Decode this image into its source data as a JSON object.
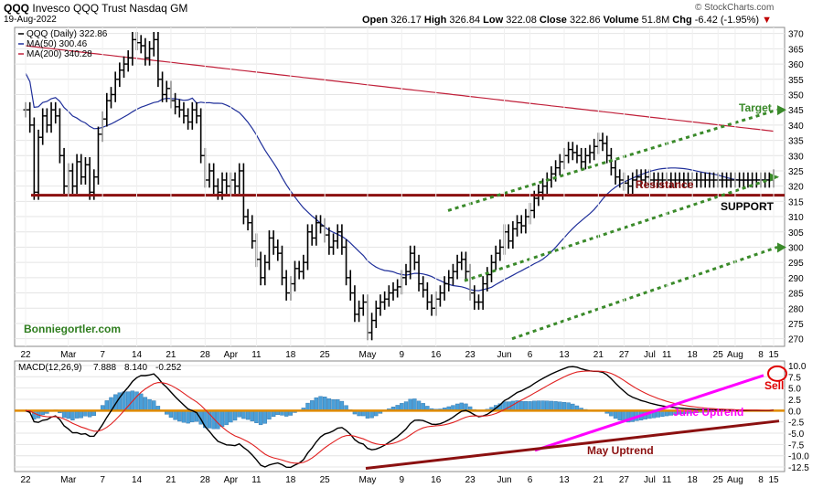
{
  "header": {
    "symbol": "QQQ",
    "name": "Invesco QQQ Trust",
    "exchange": "Nasdaq GM",
    "date": "19-Aug-2022",
    "open_label": "Open",
    "open": "326.17",
    "high_label": "High",
    "high": "326.84",
    "low_label": "Low",
    "low": "322.08",
    "close_label": "Close",
    "close": "322.86",
    "volume_label": "Volume",
    "volume": "51.8M",
    "chg_label": "Chg",
    "chg": "-6.42 (-1.95%)",
    "watermark": "© StockCharts.com"
  },
  "colors": {
    "price": "#000000",
    "ma50": "#1f2f9a",
    "ma200": "#c0203a",
    "support": "#8b1010",
    "channel": "#3a8a2a",
    "macd_line": "#000000",
    "signal": "#e02020",
    "hist": "#4a9fd8",
    "zero": "#e08a00",
    "june": "#ff00ff",
    "may": "#8b1010"
  },
  "chart_data": [
    {
      "type": "line",
      "title": "QQQ (Daily) 322.86",
      "legend": [
        {
          "label": "QQQ (Daily) 322.86",
          "color": "#000000"
        },
        {
          "label": "MA(50) 300.46",
          "color": "#1f2f9a"
        },
        {
          "label": "MA(200) 340.28",
          "color": "#c0203a"
        }
      ],
      "yticks": [
        270,
        275,
        280,
        285,
        290,
        295,
        300,
        305,
        310,
        315,
        320,
        325,
        330,
        335,
        340,
        345,
        350,
        355,
        360,
        365,
        370
      ],
      "ylim": [
        267.5,
        372
      ],
      "xticks": [
        "22",
        "Mar",
        "7",
        "14",
        "21",
        "28",
        "Apr",
        "11",
        "18",
        "25",
        "May",
        "9",
        "16",
        "23",
        "Jun",
        "6",
        "13",
        "21",
        "27",
        "Jul",
        "11",
        "18",
        "25",
        "Aug",
        "8",
        "15"
      ],
      "series": [
        {
          "name": "QQQ",
          "x": [
            0,
            1,
            2,
            3,
            4,
            5,
            6,
            7,
            8,
            9,
            10,
            11,
            12,
            13,
            14,
            15,
            16,
            17,
            18,
            19,
            20,
            21,
            22,
            23,
            24,
            25,
            26,
            27,
            28,
            29,
            30,
            31,
            32,
            33,
            34,
            35,
            36,
            37,
            38,
            39,
            40,
            41,
            42,
            43,
            44,
            45,
            46,
            47,
            48,
            49,
            50,
            51,
            52,
            53,
            54,
            55,
            56,
            57,
            58,
            59,
            60,
            61,
            62,
            63,
            64,
            65,
            66,
            67,
            68,
            69,
            70,
            71,
            72,
            73,
            74,
            75,
            76,
            77,
            78,
            79,
            80,
            81,
            82,
            83,
            84,
            85,
            86,
            87,
            88,
            89,
            90,
            91,
            92,
            93,
            94,
            95,
            96,
            97,
            98,
            99,
            100,
            101,
            102,
            103,
            104,
            105,
            106,
            107,
            108,
            109,
            110,
            111,
            112,
            113,
            114,
            115,
            116,
            117,
            118,
            119,
            120,
            121,
            122,
            123,
            124,
            125,
            126,
            127,
            128,
            129,
            130,
            131,
            132,
            133,
            134,
            135,
            136,
            137,
            138,
            139,
            140,
            141,
            142,
            143,
            144,
            145,
            146,
            147,
            148,
            149,
            150,
            151,
            152,
            153,
            154,
            155,
            156,
            157,
            158,
            159,
            160,
            161,
            162,
            163,
            164,
            165,
            166,
            167,
            168,
            169,
            170,
            171,
            172,
            173,
            174,
            175
          ],
          "close": [
            345,
            340,
            318,
            336,
            343,
            340,
            345,
            343,
            330,
            320,
            325,
            320,
            328,
            323,
            327,
            318,
            323,
            337,
            342,
            348,
            350,
            355,
            358,
            360,
            362,
            368,
            367,
            366,
            362,
            365,
            368,
            355,
            350,
            352,
            348,
            346,
            345,
            343,
            341,
            345,
            343,
            330,
            322,
            325,
            320,
            318,
            322,
            320,
            322,
            320,
            325,
            310,
            308,
            302,
            296,
            290,
            295,
            303,
            300,
            298,
            290,
            285,
            288,
            293,
            292,
            295,
            305,
            303,
            308,
            307,
            304,
            300,
            302,
            305,
            300,
            290,
            285,
            278,
            280,
            282,
            272,
            276,
            280,
            282,
            283,
            285,
            286,
            287,
            290,
            292,
            298,
            295,
            288,
            286,
            282,
            280,
            283,
            285,
            288,
            290,
            292,
            295,
            296,
            292,
            285,
            282,
            282,
            288,
            291,
            295,
            298,
            300,
            305,
            302,
            306,
            308,
            307,
            310,
            312,
            316,
            318,
            320,
            322,
            324,
            326,
            328,
            330,
            332,
            331,
            330,
            328,
            330,
            331,
            333,
            335,
            334,
            330,
            326,
            323,
            322,
            321,
            320,
            322,
            323,
            322,
            323,
            322,
            322,
            322,
            322,
            322,
            322,
            322,
            322,
            322,
            322,
            322,
            322,
            322,
            322,
            322,
            322,
            322,
            322,
            322,
            322,
            322,
            322,
            322,
            322,
            322,
            322,
            322,
            322,
            322,
            323
          ]
        },
        {
          "name": "MA(50)",
          "last": 300.46
        },
        {
          "name": "MA(200)",
          "last": 340.28
        }
      ],
      "annotations": [
        "Target",
        "Resistance",
        "SUPPORT",
        "Bonniegortler.com"
      ]
    },
    {
      "type": "line",
      "title": "MACD(12,26,9) 7.888, 8.140, -0.252",
      "legend": [
        {
          "label": "MACD(12,26,9)",
          "color": "#000000"
        },
        {
          "label": "7.888",
          "color": "#000000"
        },
        {
          "label": "8.140",
          "color": "#e02020"
        },
        {
          "label": "-0.252",
          "color": "#4a9fd8"
        }
      ],
      "yticks": [
        -12.5,
        -10.0,
        -7.5,
        -5.0,
        -2.5,
        0.0,
        2.5,
        5.0,
        7.5,
        10.0
      ],
      "ylim": [
        -13.5,
        11
      ],
      "annotations": [
        "Sell",
        "June Uptrend",
        "May Uptrend"
      ]
    }
  ]
}
